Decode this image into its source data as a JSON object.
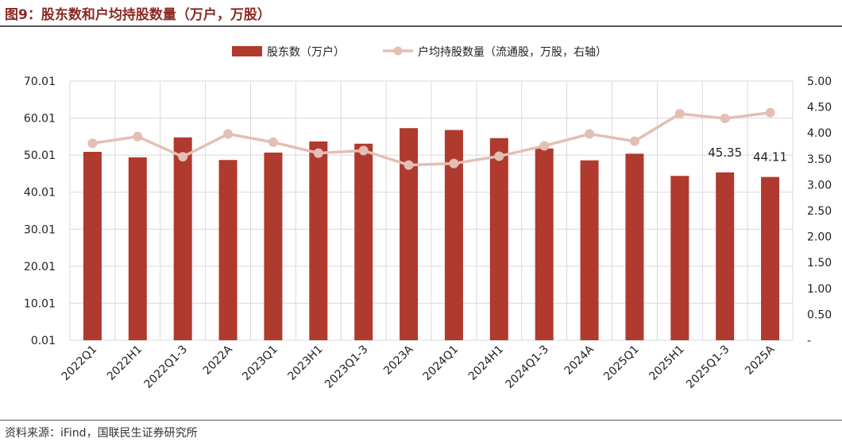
{
  "figure": {
    "title": "图9：股东数和户均持股数量（万户，万股）",
    "source": "资料来源：iFind，国联民生证券研究所"
  },
  "colors": {
    "bar": "#b03a2e",
    "line": "#e3bfb4",
    "title": "#8b2a23",
    "grid": "#d9d9d9"
  },
  "chart_data": {
    "type": "bar+line",
    "categories": [
      "2022Q1",
      "2022H1",
      "2022Q1-3",
      "2022A",
      "2023Q1",
      "2023H1",
      "2023Q1-3",
      "2023A",
      "2024Q1",
      "2024H1",
      "2024Q1-3",
      "2024A",
      "2025Q1",
      "2025H1",
      "2025Q1-3",
      "2025A"
    ],
    "series": [
      {
        "name": "股东数（万户）",
        "type": "bar",
        "axis": "left",
        "values": [
          50.9,
          49.4,
          54.8,
          48.7,
          50.7,
          53.7,
          53.1,
          57.3,
          56.8,
          54.6,
          51.8,
          48.6,
          50.4,
          44.4,
          45.35,
          44.11
        ]
      },
      {
        "name": "户均持股数量（流通股，万股，右轴）",
        "type": "line",
        "axis": "right",
        "values": [
          3.8,
          3.93,
          3.54,
          3.98,
          3.82,
          3.61,
          3.66,
          3.38,
          3.41,
          3.55,
          3.75,
          3.98,
          3.84,
          4.37,
          4.28,
          4.39
        ]
      }
    ],
    "left_axis": {
      "ticks": [
        "70.01",
        "60.01",
        "50.01",
        "40.01",
        "30.01",
        "20.01",
        "10.01",
        "0.01"
      ],
      "min": 0.01,
      "max": 70.01
    },
    "right_axis": {
      "ticks": [
        "5.00",
        "4.50",
        "4.00",
        "3.50",
        "3.00",
        "2.50",
        "2.00",
        "1.50",
        "1.00",
        "0.50",
        "-"
      ],
      "min": 0,
      "max": 5
    },
    "data_labels": [
      {
        "index": 14,
        "text": "45.35"
      },
      {
        "index": 15,
        "text": "44.11"
      }
    ],
    "legend": [
      "股东数（万户）",
      "户均持股数量（流通股，万股，右轴）"
    ],
    "legend_position": "top-center",
    "grid": true
  }
}
